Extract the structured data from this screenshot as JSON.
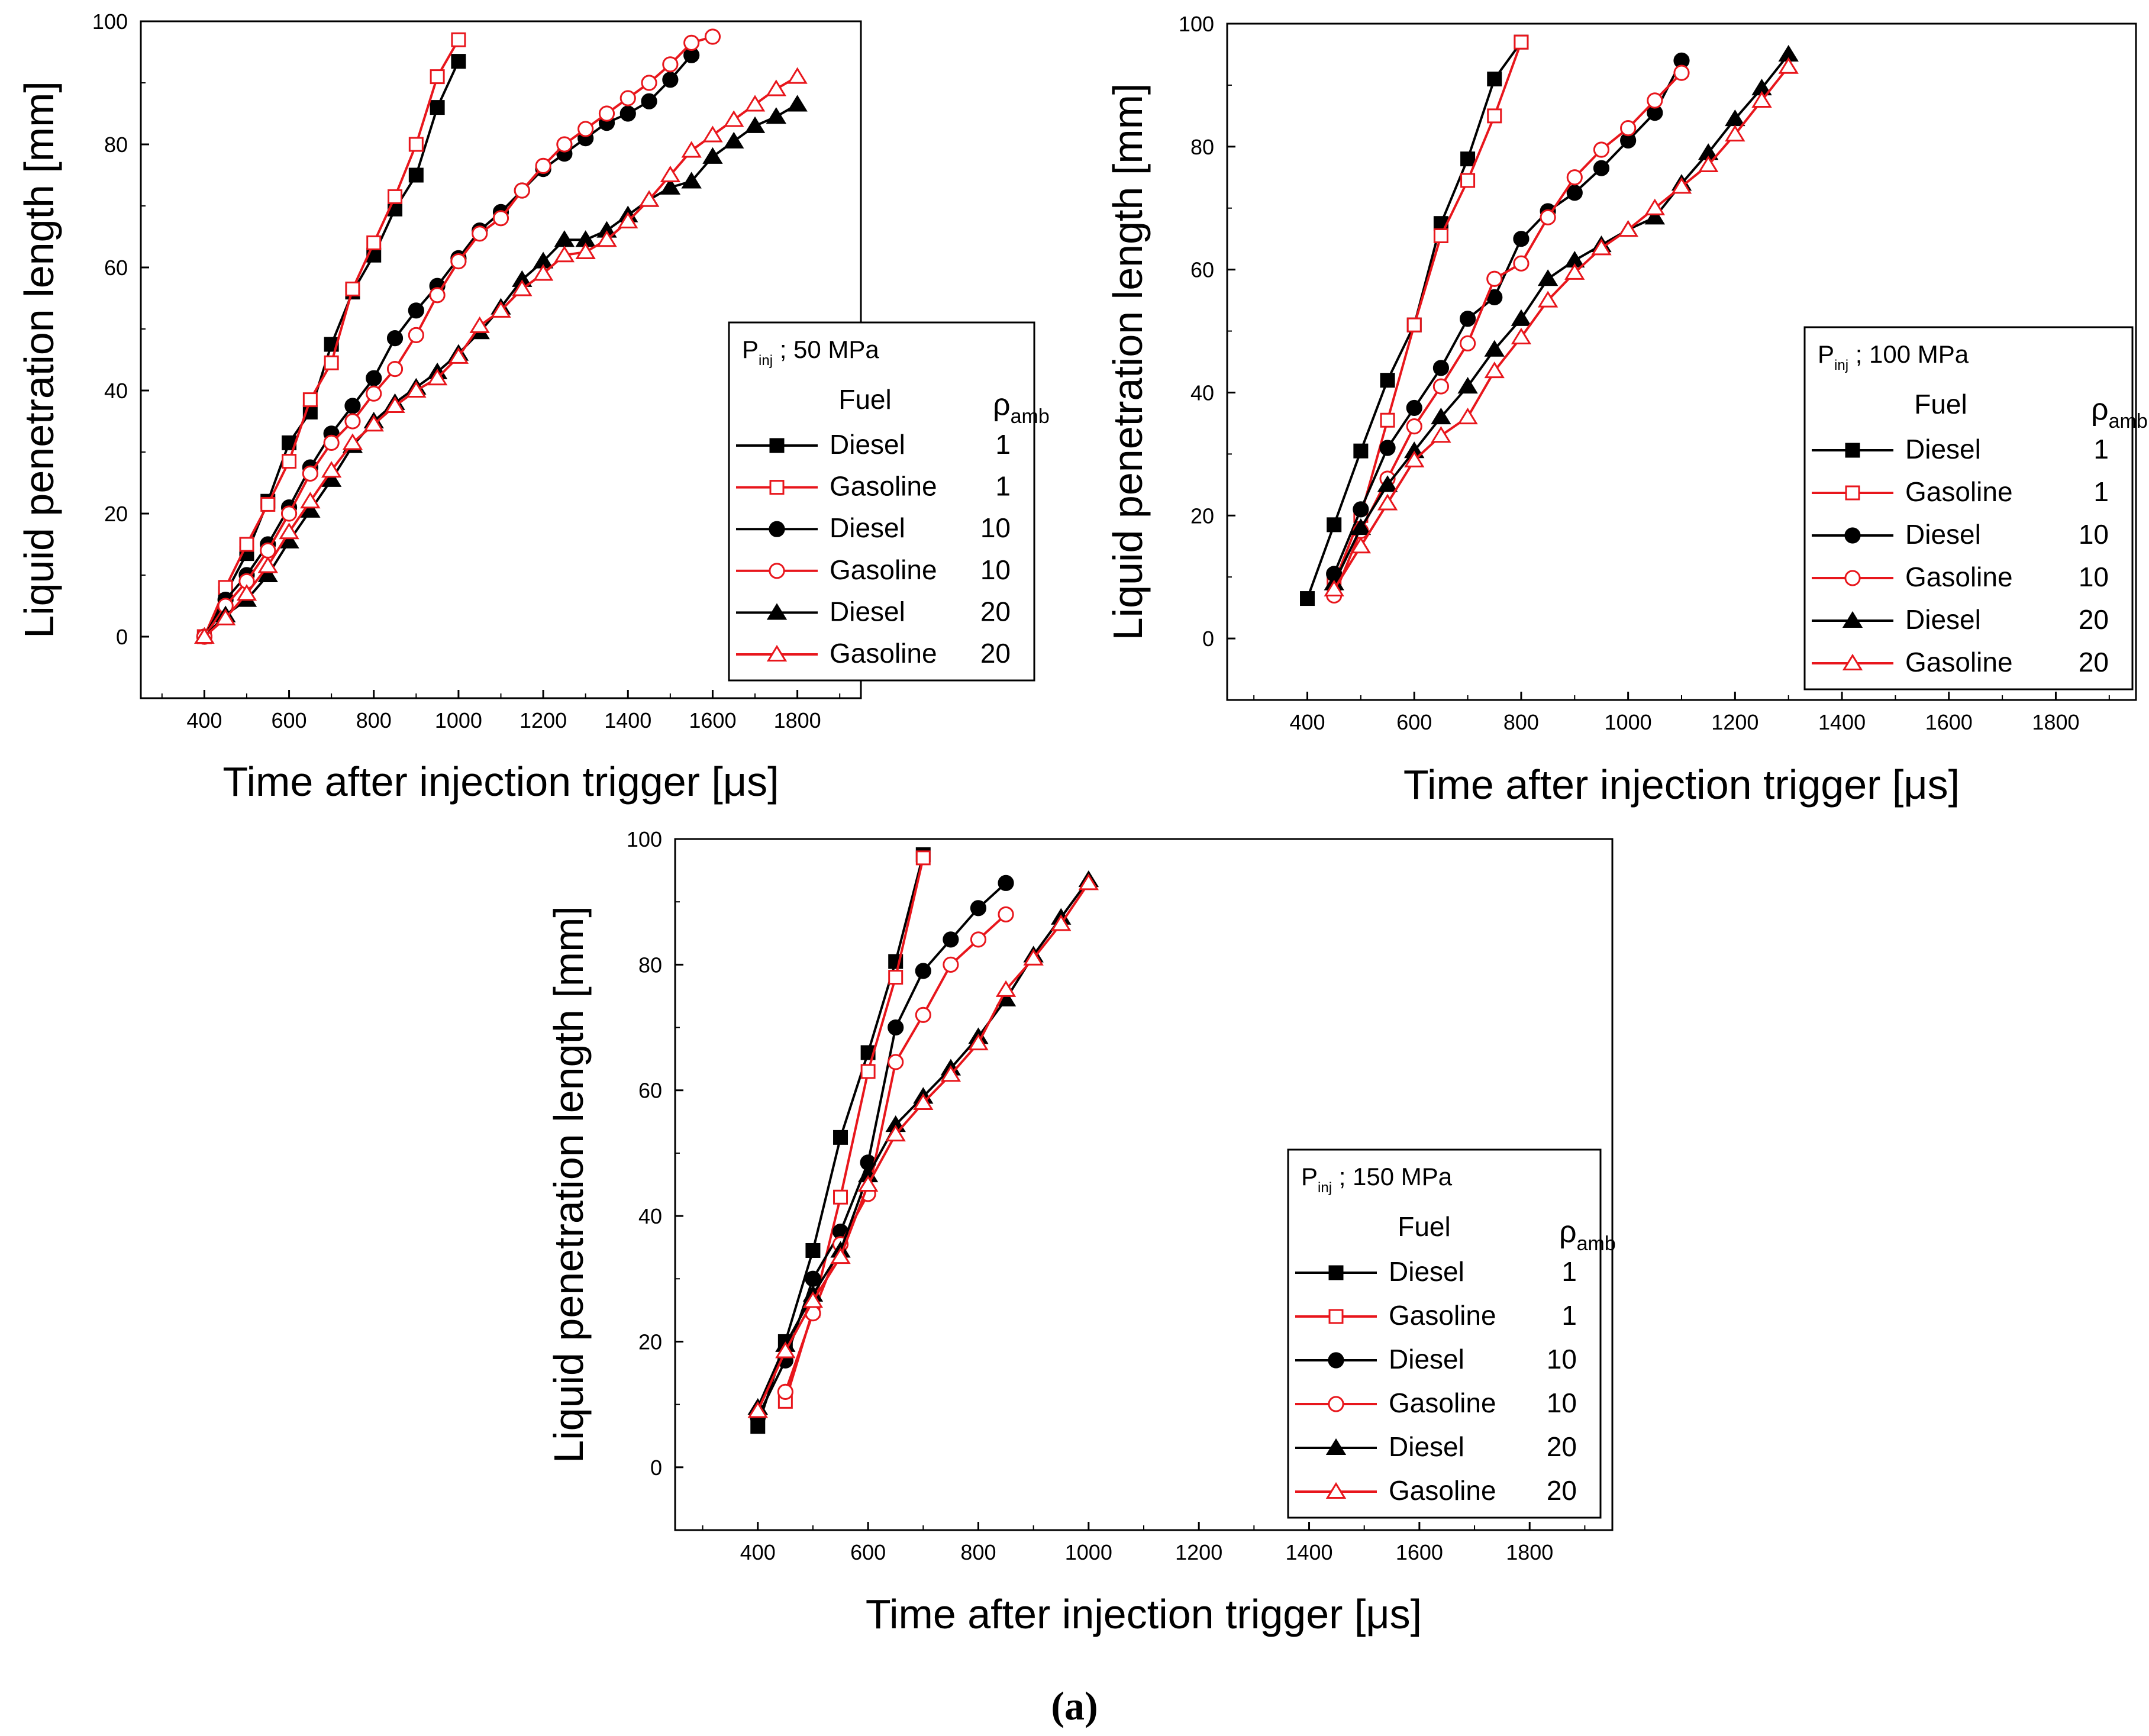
{
  "figure_label": "(a)",
  "chart_data": [
    {
      "type": "line",
      "title": "",
      "xlabel": "Time after injection trigger [μs]",
      "ylabel": "Liquid penetration length [mm]",
      "xlim": [
        250,
        1950
      ],
      "ylim": [
        -10,
        100
      ],
      "xticks": [
        400,
        600,
        800,
        1000,
        1200,
        1400,
        1600,
        1800
      ],
      "yticks": [
        0,
        20,
        40,
        60,
        80,
        100
      ],
      "legend": {
        "position": "bottom-right",
        "title_prefix": "P",
        "title_sub": "inj",
        "title_value": "; 50 MPa",
        "col1_header": "Fuel",
        "col2_header_main": "ρ",
        "col2_header_sub": "amb"
      },
      "series": [
        {
          "name": "Diesel",
          "rho": "1",
          "color": "#000000",
          "marker": "square",
          "filled": true,
          "x": [
            400,
            450,
            500,
            550,
            600,
            650,
            700,
            750,
            800,
            850,
            900,
            950,
            1000
          ],
          "y": [
            0,
            7,
            13.5,
            22,
            31.5,
            36.5,
            47.5,
            56,
            62,
            69.5,
            75,
            86,
            93.5
          ]
        },
        {
          "name": "Gasoline",
          "rho": "1",
          "color": "#e8161c",
          "marker": "square",
          "filled": false,
          "x": [
            400,
            450,
            500,
            550,
            600,
            650,
            700,
            750,
            800,
            850,
            900,
            950,
            1000
          ],
          "y": [
            0,
            8,
            15,
            21.5,
            28.5,
            38.5,
            44.5,
            56.5,
            64,
            71.5,
            80,
            91,
            97
          ]
        },
        {
          "name": "Diesel",
          "rho": "10",
          "color": "#000000",
          "marker": "circle",
          "filled": true,
          "x": [
            400,
            450,
            500,
            550,
            600,
            650,
            700,
            750,
            800,
            850,
            900,
            950,
            1000,
            1050,
            1100,
            1150,
            1200,
            1250,
            1300,
            1350,
            1400,
            1450,
            1500,
            1550
          ],
          "y": [
            0,
            6,
            10,
            15,
            21,
            27.5,
            33,
            37.5,
            42,
            48.5,
            53,
            57,
            61.5,
            66,
            69,
            72.5,
            76,
            78.5,
            81,
            83.5,
            85,
            87,
            90.5,
            94.5
          ]
        },
        {
          "name": "Gasoline",
          "rho": "10",
          "color": "#e8161c",
          "marker": "circle",
          "filled": false,
          "x": [
            400,
            450,
            500,
            550,
            600,
            650,
            700,
            750,
            800,
            850,
            900,
            950,
            1000,
            1050,
            1100,
            1150,
            1200,
            1250,
            1300,
            1350,
            1400,
            1450,
            1500,
            1550,
            1600
          ],
          "y": [
            0,
            5,
            9,
            14,
            20,
            26.5,
            31.5,
            35,
            39.5,
            43.5,
            49,
            55.5,
            61,
            65.5,
            68,
            72.5,
            76.5,
            80,
            82.5,
            85,
            87.5,
            90,
            93,
            96.5,
            97.5
          ]
        },
        {
          "name": "Diesel",
          "rho": "20",
          "color": "#000000",
          "marker": "triangle",
          "filled": true,
          "x": [
            400,
            450,
            500,
            550,
            600,
            650,
            700,
            750,
            800,
            850,
            900,
            950,
            1000,
            1050,
            1100,
            1150,
            1200,
            1250,
            1300,
            1350,
            1400,
            1450,
            1500,
            1550,
            1600,
            1650,
            1700,
            1750,
            1800
          ],
          "y": [
            0,
            3.5,
            6,
            10,
            15.5,
            20.5,
            25.5,
            31,
            35,
            38,
            40.5,
            43,
            46,
            49.5,
            53.5,
            58,
            61,
            64.5,
            64.5,
            66,
            68.5,
            71,
            73,
            74,
            78,
            80.5,
            83,
            84.5,
            86.5
          ]
        },
        {
          "name": "Gasoline",
          "rho": "20",
          "color": "#e8161c",
          "marker": "triangle",
          "filled": false,
          "x": [
            400,
            450,
            500,
            550,
            600,
            650,
            700,
            750,
            800,
            850,
            900,
            950,
            1000,
            1050,
            1100,
            1150,
            1200,
            1250,
            1300,
            1350,
            1400,
            1450,
            1500,
            1550,
            1600,
            1650,
            1700,
            1750,
            1800
          ],
          "y": [
            0,
            3,
            7,
            11.5,
            17,
            22,
            27,
            31.5,
            34.5,
            37.5,
            40,
            42,
            45.5,
            50.5,
            53,
            56.5,
            59,
            62,
            62.5,
            64.5,
            67.5,
            71,
            75,
            79,
            81.5,
            84,
            86.5,
            89,
            91
          ]
        }
      ]
    },
    {
      "type": "line",
      "title": "",
      "xlabel": "Time after injection trigger [μs]",
      "ylabel": "Liquid penetration length [mm]",
      "xlim": [
        250,
        1950
      ],
      "ylim": [
        -10,
        100
      ],
      "xticks": [
        400,
        600,
        800,
        1000,
        1200,
        1400,
        1600,
        1800
      ],
      "yticks": [
        0,
        20,
        40,
        60,
        80,
        100
      ],
      "legend": {
        "position": "bottom-right",
        "title_prefix": "P",
        "title_sub": "inj",
        "title_value": "; 100 MPa",
        "col1_header": "Fuel",
        "col2_header_main": "ρ",
        "col2_header_sub": "amb"
      },
      "series": [
        {
          "name": "Diesel",
          "rho": "1",
          "color": "#000000",
          "marker": "square",
          "filled": true,
          "x": [
            400,
            450,
            500,
            550,
            600,
            650,
            700,
            750,
            800
          ],
          "y": [
            6.5,
            18.5,
            30.5,
            42,
            51,
            67.5,
            78,
            91,
            97
          ]
        },
        {
          "name": "Gasoline",
          "rho": "1",
          "color": "#e8161c",
          "marker": "square",
          "filled": false,
          "x": [
            450,
            500,
            550,
            600,
            650,
            700,
            750,
            800
          ],
          "y": [
            9,
            20,
            35.5,
            51,
            65.5,
            74.5,
            85,
            97
          ]
        },
        {
          "name": "Diesel",
          "rho": "10",
          "color": "#000000",
          "marker": "circle",
          "filled": true,
          "x": [
            450,
            500,
            550,
            600,
            650,
            700,
            750,
            800,
            850,
            900,
            950,
            1000,
            1050,
            1100
          ],
          "y": [
            10.5,
            21,
            31,
            37.5,
            44,
            52,
            55.5,
            65,
            69.5,
            72.5,
            76.5,
            81,
            85.5,
            94
          ]
        },
        {
          "name": "Gasoline",
          "rho": "10",
          "color": "#e8161c",
          "marker": "circle",
          "filled": false,
          "x": [
            450,
            500,
            550,
            600,
            650,
            700,
            750,
            800,
            850,
            900,
            950,
            1000,
            1050,
            1100
          ],
          "y": [
            7,
            17.5,
            26,
            34.5,
            41,
            48,
            58.5,
            61,
            68.5,
            75,
            79.5,
            83,
            87.5,
            92
          ]
        },
        {
          "name": "Diesel",
          "rho": "20",
          "color": "#000000",
          "marker": "triangle",
          "filled": true,
          "x": [
            450,
            500,
            550,
            600,
            650,
            700,
            750,
            800,
            850,
            900,
            950,
            1000,
            1050,
            1100,
            1150,
            1200,
            1250,
            1300
          ],
          "y": [
            9,
            18,
            25,
            30.5,
            36,
            41,
            47,
            52,
            58.5,
            61.5,
            64,
            66.5,
            68.5,
            74,
            79,
            84.5,
            89.5,
            95
          ]
        },
        {
          "name": "Gasoline",
          "rho": "20",
          "color": "#e8161c",
          "marker": "triangle",
          "filled": false,
          "x": [
            450,
            500,
            550,
            600,
            650,
            700,
            750,
            800,
            850,
            900,
            950,
            1000,
            1050,
            1100,
            1150,
            1200,
            1250,
            1300
          ],
          "y": [
            8,
            15,
            22,
            29,
            33,
            36,
            43.5,
            49,
            55,
            59.5,
            63.5,
            66.5,
            70,
            73.5,
            77,
            82,
            87.5,
            93
          ]
        }
      ]
    },
    {
      "type": "line",
      "title": "",
      "xlabel": "Time after injection trigger [μs]",
      "ylabel": "Liquid penetration length [mm]",
      "xlim": [
        250,
        1950
      ],
      "ylim": [
        -10,
        100
      ],
      "xticks": [
        400,
        600,
        800,
        1000,
        1200,
        1400,
        1600,
        1800
      ],
      "yticks": [
        0,
        20,
        40,
        60,
        80,
        100
      ],
      "legend": {
        "position": "bottom-right",
        "title_prefix": "P",
        "title_sub": "inj",
        "title_value": "; 150 MPa",
        "col1_header": "Fuel",
        "col2_header_main": "ρ",
        "col2_header_sub": "amb"
      },
      "series": [
        {
          "name": "Diesel",
          "rho": "1",
          "color": "#000000",
          "marker": "square",
          "filled": true,
          "x": [
            400,
            450,
            500,
            550,
            600,
            650,
            700
          ],
          "y": [
            6.5,
            20,
            34.5,
            52.5,
            66,
            80.5,
            97.5
          ]
        },
        {
          "name": "Gasoline",
          "rho": "1",
          "color": "#e8161c",
          "marker": "square",
          "filled": false,
          "x": [
            450,
            500,
            550,
            600,
            650,
            700
          ],
          "y": [
            10.5,
            25,
            43,
            63,
            78,
            97
          ]
        },
        {
          "name": "Diesel",
          "rho": "10",
          "color": "#000000",
          "marker": "circle",
          "filled": true,
          "x": [
            400,
            450,
            500,
            550,
            600,
            650,
            700,
            750,
            800,
            850
          ],
          "y": [
            8,
            17,
            30,
            37.5,
            48.5,
            70,
            79,
            84,
            89,
            93
          ]
        },
        {
          "name": "Gasoline",
          "rho": "10",
          "color": "#e8161c",
          "marker": "circle",
          "filled": false,
          "x": [
            450,
            500,
            550,
            600,
            650,
            700,
            750,
            800,
            850
          ],
          "y": [
            12,
            24.5,
            35.5,
            43.5,
            64.5,
            72,
            80,
            84,
            88
          ]
        },
        {
          "name": "Diesel",
          "rho": "20",
          "color": "#000000",
          "marker": "triangle",
          "filled": true,
          "x": [
            400,
            450,
            500,
            550,
            600,
            650,
            700,
            750,
            800,
            850,
            900,
            950,
            1000
          ],
          "y": [
            9.5,
            19.5,
            27.5,
            34.5,
            46.5,
            54.5,
            59,
            63.5,
            68.5,
            74.5,
            81.5,
            87.5,
            93.5
          ]
        },
        {
          "name": "Gasoline",
          "rho": "20",
          "color": "#e8161c",
          "marker": "triangle",
          "filled": false,
          "x": [
            400,
            450,
            500,
            550,
            600,
            650,
            700,
            750,
            800,
            850,
            900,
            950,
            1000
          ],
          "y": [
            9,
            18.5,
            26.5,
            33.5,
            45,
            53,
            58,
            62.5,
            67.5,
            76,
            81,
            86.5,
            93
          ]
        }
      ]
    }
  ]
}
